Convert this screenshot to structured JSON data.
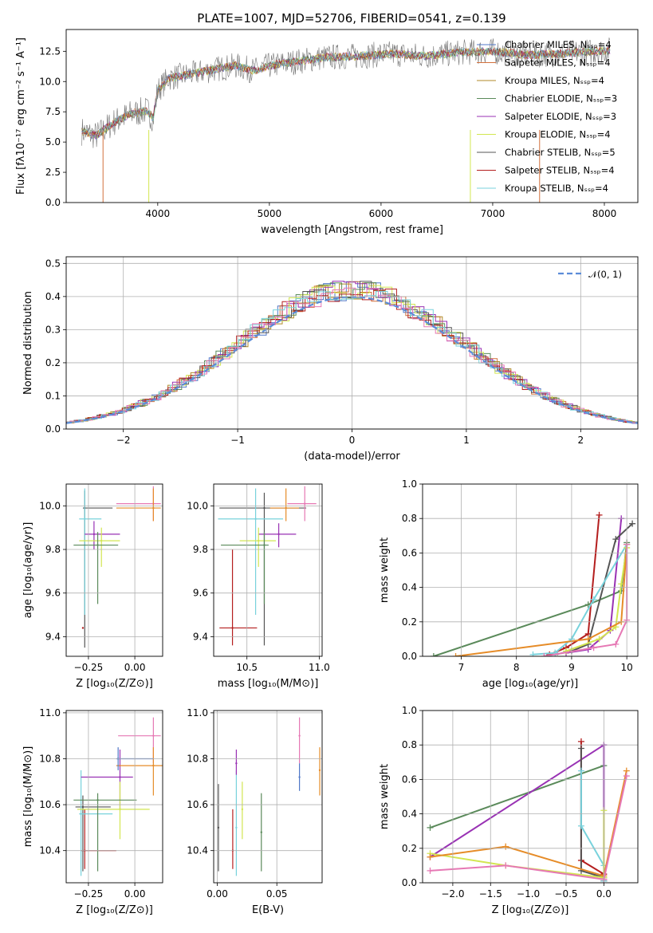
{
  "colors": {
    "Chabrier MILES": "#5078c8",
    "Salpeter MILES": "#d2703c",
    "Kroupa MILES": "#b08a28",
    "Chabrier ELODIE": "#5a8a5a",
    "Salpeter ELODIE": "#9932b4",
    "Kroupa ELODIE": "#d2e650",
    "Chabrier STELIB": "#555555",
    "Salpeter STELIB": "#b41e1e",
    "Kroupa STELIB": "#78d2dc",
    "pink": "#e678b4",
    "orange": "#e68c28"
  },
  "chart_data": [
    {
      "id": "spectrum",
      "type": "line",
      "title": "PLATE=1007, MJD=52706, FIBERID=0541, z=0.139",
      "xlabel": "wavelength [Angstrom, rest frame]",
      "ylabel": "Flux [fλ10⁻¹⁷ erg cm⁻² s⁻¹ A⁻¹]",
      "xlim": [
        3180,
        8300
      ],
      "ylim": [
        0,
        14.3
      ],
      "xticks": [
        4000,
        5000,
        6000,
        7000,
        8000
      ],
      "yticks": [
        "0.0",
        "2.5",
        "5.0",
        "7.5",
        "10.0",
        "12.5"
      ],
      "ytick_values": [
        0,
        2.5,
        5,
        7.5,
        10,
        12.5
      ],
      "legend": "upper right",
      "grid": false,
      "series": [
        {
          "name": "Chabrier MILES, Nₛₛₚ=4",
          "color_key": "Chabrier MILES"
        },
        {
          "name": "Salpeter MILES, Nₛₛₚ=4",
          "color_key": "Salpeter MILES"
        },
        {
          "name": "Kroupa MILES, Nₛₛₚ=4",
          "color_key": "Kroupa MILES"
        },
        {
          "name": "Chabrier ELODIE, Nₛₛₚ=3",
          "color_key": "Chabrier ELODIE"
        },
        {
          "name": "Salpeter ELODIE, Nₛₛₚ=3",
          "color_key": "Salpeter ELODIE"
        },
        {
          "name": "Kroupa ELODIE, Nₛₛₚ=4",
          "color_key": "Kroupa ELODIE"
        },
        {
          "name": "Chabrier STELIB, Nₛₛₚ=5",
          "color_key": "Chabrier STELIB"
        },
        {
          "name": "Salpeter STELIB, Nₛₛₚ=4",
          "color_key": "Salpeter STELIB"
        },
        {
          "name": "Kroupa STELIB, Nₛₛₚ=4",
          "color_key": "Kroupa STELIB"
        }
      ],
      "continuum": [
        [
          3320,
          5.9
        ],
        [
          3450,
          5.5
        ],
        [
          3600,
          6.6
        ],
        [
          3750,
          7.3
        ],
        [
          3900,
          7.6
        ],
        [
          3960,
          7.0
        ],
        [
          4000,
          9.3
        ],
        [
          4100,
          10.3
        ],
        [
          4300,
          10.6
        ],
        [
          4500,
          11.0
        ],
        [
          4700,
          11.3
        ],
        [
          4860,
          10.9
        ],
        [
          5000,
          11.3
        ],
        [
          5200,
          11.6
        ],
        [
          5500,
          12.0
        ],
        [
          5800,
          12.1
        ],
        [
          6100,
          12.3
        ],
        [
          6400,
          12.1
        ],
        [
          6700,
          12.4
        ],
        [
          7000,
          12.5
        ],
        [
          7300,
          12.2
        ],
        [
          7600,
          12.3
        ],
        [
          7900,
          12.5
        ],
        [
          8050,
          12.6
        ]
      ]
    },
    {
      "id": "residuals",
      "type": "histogram",
      "xlabel": "(data-model)/error",
      "ylabel": "Normed distribution",
      "xlim": [
        -2.5,
        2.5
      ],
      "ylim": [
        0,
        0.52
      ],
      "xticks": [
        "−2",
        "−1",
        "0",
        "1",
        "2"
      ],
      "xtick_values": [
        -2,
        -1,
        0,
        1,
        2
      ],
      "yticks": [
        "0.0",
        "0.1",
        "0.2",
        "0.3",
        "0.4",
        "0.5"
      ],
      "ytick_values": [
        0,
        0.1,
        0.2,
        0.3,
        0.4,
        0.5
      ],
      "grid": true,
      "legend": "upper right",
      "reference_label": "𝒩(0, 1)",
      "reference_color": "#5b8cd8"
    },
    {
      "id": "age-vs-Z",
      "type": "scatter",
      "xlabel": "Z [log₁₀(Z/Z⊙)]",
      "ylabel": "age  [log₁₀(age/yr)]",
      "xlim": [
        -0.37,
        0.15
      ],
      "ylim": [
        9.31,
        10.1
      ],
      "xticks": [
        "−0.25",
        "0.00"
      ],
      "xtick_values": [
        -0.25,
        0
      ],
      "yticks": [
        "9.4",
        "9.6",
        "9.8",
        "10.0"
      ],
      "ytick_values": [
        9.4,
        9.6,
        9.8,
        10.0
      ],
      "grid": true,
      "points": [
        {
          "x": -0.28,
          "y": 9.44,
          "xerr": 0.04,
          "yerr": 0.36,
          "c": "Salpeter STELIB",
          "hx": [
            -0.28,
            -0.09
          ]
        },
        {
          "x": -0.27,
          "y": 9.99,
          "c": "Chabrier STELIB",
          "x0": -0.28,
          "x1": -0.12,
          "y0": 9.35,
          "y1": 10.07
        },
        {
          "x": -0.27,
          "y": 9.94,
          "c": "Kroupa STELIB",
          "x0": -0.3,
          "x1": -0.18,
          "y0": 9.5,
          "y1": 10.08
        },
        {
          "x": -0.22,
          "y": 9.87,
          "c": "Salpeter ELODIE",
          "x0": -0.27,
          "x1": -0.08,
          "y0": 9.8,
          "y1": 9.93
        },
        {
          "x": -0.18,
          "y": 9.84,
          "c": "Kroupa ELODIE",
          "x0": -0.3,
          "x1": -0.08,
          "y0": 9.72,
          "y1": 9.9
        },
        {
          "x": -0.2,
          "y": 9.82,
          "c": "Chabrier ELODIE",
          "x0": -0.33,
          "x1": -0.09,
          "y0": 9.55,
          "y1": 9.88
        },
        {
          "x": 0.1,
          "y": 10.01,
          "c": "pink",
          "x0": -0.1,
          "x1": 0.14,
          "y0": 9.93,
          "y1": 10.09
        },
        {
          "x": 0.1,
          "y": 9.99,
          "c": "orange",
          "x0": -0.1,
          "x1": 0.14,
          "y0": 9.93,
          "y1": 10.08
        }
      ]
    },
    {
      "id": "age-vs-mass",
      "type": "scatter",
      "xlabel": "mass [log₁₀(M/M⊙)]",
      "ylabel": "",
      "xlim": [
        10.27,
        11.02
      ],
      "ylim": [
        9.31,
        10.1
      ],
      "xticks": [
        "10.5",
        "11.0"
      ],
      "xtick_values": [
        10.5,
        11.0
      ],
      "yticks": [
        "9.4",
        "9.6",
        "9.8",
        "10.0"
      ],
      "ytick_values": [
        9.4,
        9.6,
        9.8,
        10.0
      ],
      "grid": true,
      "points": [
        {
          "x": 10.4,
          "y": 9.44,
          "c": "Salpeter STELIB",
          "x0": 10.31,
          "x1": 10.57,
          "y0": 9.36,
          "y1": 9.8
        },
        {
          "x": 10.62,
          "y": 9.99,
          "c": "Chabrier STELIB",
          "x0": 10.31,
          "x1": 10.91,
          "y0": 9.36,
          "y1": 10.06
        },
        {
          "x": 10.56,
          "y": 9.94,
          "c": "Kroupa STELIB",
          "x0": 10.3,
          "x1": 10.75,
          "y0": 9.5,
          "y1": 10.08
        },
        {
          "x": 10.72,
          "y": 9.87,
          "c": "Salpeter ELODIE",
          "x0": 10.58,
          "x1": 10.84,
          "y0": 9.81,
          "y1": 9.92
        },
        {
          "x": 10.58,
          "y": 9.84,
          "c": "Kroupa ELODIE",
          "x0": 10.45,
          "x1": 10.7,
          "y0": 9.72,
          "y1": 9.9
        },
        {
          "x": 10.62,
          "y": 9.82,
          "c": "Chabrier ELODIE",
          "x0": 10.32,
          "x1": 10.65,
          "y0": 9.55,
          "y1": 9.88
        },
        {
          "x": 10.9,
          "y": 10.01,
          "c": "pink",
          "x0": 10.78,
          "x1": 10.98,
          "y0": 9.93,
          "y1": 10.09
        },
        {
          "x": 10.77,
          "y": 9.99,
          "c": "orange",
          "x0": 10.66,
          "x1": 10.86,
          "y0": 9.93,
          "y1": 10.08
        }
      ]
    },
    {
      "id": "weight-vs-age",
      "type": "line",
      "xlabel": "age  [log₁₀(age/yr)]",
      "ylabel": "mass weight",
      "xlim": [
        6.3,
        10.2
      ],
      "ylim": [
        0,
        1
      ],
      "xticks": [
        "7",
        "8",
        "9",
        "10"
      ],
      "xtick_values": [
        7,
        8,
        9,
        10
      ],
      "yticks": [
        "0.0",
        "0.2",
        "0.4",
        "0.6",
        "0.8",
        "1.0"
      ],
      "ytick_values": [
        0,
        0.2,
        0.4,
        0.6,
        0.8,
        1.0
      ],
      "grid": true,
      "series": [
        {
          "c": "Chabrier ELODIE",
          "x": [
            6.5,
            9.3,
            9.9,
            10.0
          ],
          "y": [
            0.0,
            0.3,
            0.38,
            0.66
          ]
        },
        {
          "c": "Salpeter STELIB",
          "x": [
            8.6,
            8.9,
            9.3,
            9.5
          ],
          "y": [
            0.01,
            0.05,
            0.13,
            0.82
          ]
        },
        {
          "c": "Salpeter ELODIE",
          "x": [
            8.9,
            9.3,
            9.7,
            9.9
          ],
          "y": [
            0.02,
            0.04,
            0.15,
            0.8
          ]
        },
        {
          "c": "Chabrier STELIB",
          "x": [
            8.7,
            9.0,
            9.3,
            9.8,
            10.1
          ],
          "y": [
            0.01,
            0.03,
            0.07,
            0.68,
            0.77
          ]
        },
        {
          "c": "Kroupa STELIB",
          "x": [
            8.3,
            8.7,
            9.0,
            9.4,
            10.0
          ],
          "y": [
            0.01,
            0.02,
            0.1,
            0.33,
            0.65
          ]
        },
        {
          "c": "Kroupa ELODIE",
          "x": [
            8.9,
            9.5,
            9.8,
            9.9,
            10.0
          ],
          "y": [
            0.03,
            0.1,
            0.17,
            0.42,
            0.63
          ]
        },
        {
          "c": "orange",
          "x": [
            6.9,
            9.3,
            9.9,
            10.0
          ],
          "y": [
            0.0,
            0.1,
            0.2,
            0.65
          ]
        },
        {
          "c": "pink",
          "x": [
            8.5,
            9.4,
            9.8,
            10.0,
            10.0
          ],
          "y": [
            0.0,
            0.05,
            0.07,
            0.21,
            0.65
          ]
        }
      ]
    },
    {
      "id": "mass-vs-Z",
      "type": "scatter",
      "xlabel": "Z [log₁₀(Z/Z⊙)]",
      "ylabel": "mass [log₁₀(M/M⊙)]",
      "xlim": [
        -0.37,
        0.15
      ],
      "ylim": [
        10.26,
        11.01
      ],
      "xticks": [
        "−0.25",
        "0.00"
      ],
      "xtick_values": [
        -0.25,
        0
      ],
      "yticks": [
        "10.4",
        "10.6",
        "10.8",
        "11.0"
      ],
      "ytick_values": [
        10.4,
        10.6,
        10.8,
        11.0
      ],
      "grid": true,
      "points": [
        {
          "x": -0.27,
          "y": 10.4,
          "c": "Salpeter STELIB",
          "x0": -0.29,
          "x1": -0.1,
          "y0": 10.32,
          "y1": 10.58
        },
        {
          "x": -0.28,
          "y": 10.59,
          "c": "Chabrier STELIB",
          "x0": -0.32,
          "x1": -0.13,
          "y0": 10.31,
          "y1": 10.64
        },
        {
          "x": -0.29,
          "y": 10.56,
          "c": "Kroupa STELIB",
          "x0": -0.3,
          "x1": -0.12,
          "y0": 10.29,
          "y1": 10.75
        },
        {
          "x": -0.08,
          "y": 10.72,
          "c": "Salpeter ELODIE",
          "x0": -0.29,
          "x1": -0.01,
          "y0": 10.58,
          "y1": 10.84
        },
        {
          "x": -0.08,
          "y": 10.58,
          "c": "Kroupa ELODIE",
          "x0": -0.31,
          "x1": 0.08,
          "y0": 10.45,
          "y1": 10.7
        },
        {
          "x": -0.2,
          "y": 10.62,
          "c": "Chabrier ELODIE",
          "x0": -0.33,
          "x1": 0.01,
          "y0": 10.31,
          "y1": 10.65
        },
        {
          "x": 0.1,
          "y": 10.9,
          "c": "pink",
          "x0": -0.09,
          "x1": 0.14,
          "y0": 10.78,
          "y1": 10.98
        },
        {
          "x": 0.1,
          "y": 10.77,
          "c": "orange",
          "x0": -0.1,
          "x1": 0.15,
          "y0": 10.64,
          "y1": 10.85
        },
        {
          "x": -0.09,
          "y": 10.8,
          "c": "Chabrier MILES",
          "x0": -0.1,
          "x1": 0.1,
          "y0": 10.75,
          "y1": 10.85
        }
      ]
    },
    {
      "id": "mass-vs-ebv",
      "type": "scatter",
      "xlabel": "E(B-V)",
      "ylabel": "",
      "xlim": [
        -0.003,
        0.088
      ],
      "ylim": [
        10.26,
        11.01
      ],
      "xticks": [
        "0.00",
        "0.05"
      ],
      "xtick_values": [
        0,
        0.05
      ],
      "yticks": [
        "10.4",
        "10.6",
        "10.8",
        "11.0"
      ],
      "ytick_values": [
        10.4,
        10.6,
        10.8,
        11.0
      ],
      "grid": true,
      "points": [
        {
          "x": 0.013,
          "y": 10.4,
          "c": "Salpeter STELIB",
          "y0": 10.32,
          "y1": 10.58
        },
        {
          "x": 0.001,
          "y": 10.5,
          "c": "Chabrier STELIB",
          "y0": 10.31,
          "y1": 10.69
        },
        {
          "x": 0.016,
          "y": 10.5,
          "c": "Kroupa STELIB",
          "y0": 10.29,
          "y1": 10.75
        },
        {
          "x": 0.016,
          "y": 10.78,
          "c": "Salpeter ELODIE",
          "y0": 10.73,
          "y1": 10.84
        },
        {
          "x": 0.021,
          "y": 10.58,
          "c": "Kroupa ELODIE",
          "y0": 10.45,
          "y1": 10.7
        },
        {
          "x": 0.037,
          "y": 10.48,
          "c": "Chabrier ELODIE",
          "y0": 10.31,
          "y1": 10.65
        },
        {
          "x": 0.069,
          "y": 10.9,
          "c": "pink",
          "y0": 10.78,
          "y1": 10.98
        },
        {
          "x": 0.086,
          "y": 10.75,
          "c": "orange",
          "y0": 10.64,
          "y1": 10.85
        },
        {
          "x": 0.069,
          "y": 10.72,
          "c": "Chabrier MILES",
          "y0": 10.66,
          "y1": 10.78
        }
      ]
    },
    {
      "id": "weight-vs-Z",
      "type": "line",
      "xlabel": "Z [log₁₀(Z/Z⊙)]",
      "ylabel": "mass weight",
      "xlim": [
        -2.4,
        0.45
      ],
      "ylim": [
        0,
        1
      ],
      "xticks": [
        "−2.0",
        "−1.5",
        "−1.0",
        "−0.5",
        "0.0"
      ],
      "xtick_values": [
        -2,
        -1.5,
        -1,
        -0.5,
        0
      ],
      "yticks": [
        "0.0",
        "0.2",
        "0.4",
        "0.6",
        "0.8",
        "1.0"
      ],
      "ytick_values": [
        0,
        0.2,
        0.4,
        0.6,
        0.8,
        1.0
      ],
      "grid": true,
      "series": [
        {
          "c": "Chabrier ELODIE",
          "x": [
            -2.3,
            0.0
          ],
          "y": [
            0.32,
            0.68
          ]
        },
        {
          "c": "Salpeter ELODIE",
          "x": [
            -2.3,
            0.0,
            0.0
          ],
          "y": [
            0.15,
            0.8,
            0.02
          ]
        },
        {
          "c": "Salpeter STELIB",
          "x": [
            -0.3,
            -0.3,
            0.0,
            0.0
          ],
          "y": [
            0.82,
            0.13,
            0.05,
            0.01
          ]
        },
        {
          "c": "Chabrier STELIB",
          "x": [
            -0.3,
            -0.3,
            0.0,
            0.0
          ],
          "y": [
            0.78,
            0.07,
            0.03,
            0.01
          ]
        },
        {
          "c": "Kroupa STELIB",
          "x": [
            -0.3,
            -0.3,
            0.0,
            0.0
          ],
          "y": [
            0.65,
            0.33,
            0.1,
            0.01
          ]
        },
        {
          "c": "Kroupa ELODIE",
          "x": [
            -2.3,
            -1.3,
            0.0,
            0.0
          ],
          "y": [
            0.17,
            0.1,
            0.03,
            0.42
          ]
        },
        {
          "c": "orange",
          "x": [
            -2.3,
            -1.3,
            0.0,
            0.3
          ],
          "y": [
            0.15,
            0.21,
            0.04,
            0.65
          ]
        },
        {
          "c": "pink",
          "x": [
            -2.3,
            -1.3,
            0.0,
            0.3
          ],
          "y": [
            0.07,
            0.1,
            0.02,
            0.62
          ]
        }
      ]
    }
  ]
}
